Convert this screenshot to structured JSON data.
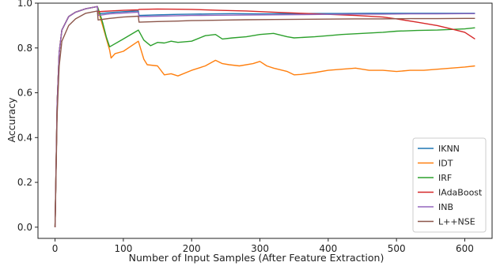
{
  "chart_data": {
    "type": "line",
    "title": "",
    "xlabel": "Number of Input Samples (After Feature Extraction)",
    "ylabel": "Accuracy",
    "xlim": [
      -25,
      640
    ],
    "ylim": [
      -0.05,
      1.0
    ],
    "xticks": [
      0,
      100,
      200,
      300,
      400,
      500,
      600
    ],
    "xtick_labels": [
      "0",
      "100",
      "200",
      "300",
      "400",
      "500",
      "600"
    ],
    "yticks": [
      0.0,
      0.2,
      0.4,
      0.6,
      0.8,
      1.0
    ],
    "ytick_labels": [
      "0.0",
      "0.2",
      "0.4",
      "0.6",
      "0.8",
      "1.0"
    ],
    "grid": false,
    "legend_position": "bottom-right",
    "series": [
      {
        "name": "IKNN",
        "color": "#1f77b4",
        "x": [
          0,
          3,
          6,
          10,
          20,
          30,
          45,
          62,
          63,
          80,
          100,
          122,
          123,
          150,
          180,
          200,
          230,
          260,
          300,
          340,
          380,
          420,
          460,
          500,
          540,
          580,
          615
        ],
        "y": [
          0.0,
          0.55,
          0.78,
          0.88,
          0.94,
          0.96,
          0.975,
          0.985,
          0.952,
          0.958,
          0.962,
          0.965,
          0.945,
          0.948,
          0.95,
          0.951,
          0.952,
          0.953,
          0.952,
          0.953,
          0.954,
          0.954,
          0.955,
          0.955,
          0.955,
          0.955,
          0.955
        ]
      },
      {
        "name": "IDT",
        "color": "#ff7f0e",
        "x": [
          0,
          3,
          6,
          10,
          20,
          30,
          45,
          62,
          65,
          80,
          82,
          88,
          100,
          122,
          130,
          135,
          150,
          160,
          170,
          180,
          200,
          220,
          235,
          245,
          255,
          270,
          290,
          300,
          310,
          320,
          340,
          350,
          360,
          380,
          400,
          420,
          440,
          460,
          480,
          500,
          520,
          540,
          560,
          580,
          600,
          615
        ],
        "y": [
          0.0,
          0.55,
          0.78,
          0.88,
          0.94,
          0.96,
          0.975,
          0.985,
          0.95,
          0.79,
          0.755,
          0.775,
          0.785,
          0.83,
          0.75,
          0.725,
          0.72,
          0.68,
          0.685,
          0.675,
          0.7,
          0.72,
          0.745,
          0.73,
          0.725,
          0.72,
          0.73,
          0.74,
          0.72,
          0.71,
          0.695,
          0.68,
          0.682,
          0.69,
          0.7,
          0.705,
          0.71,
          0.7,
          0.7,
          0.695,
          0.7,
          0.7,
          0.705,
          0.71,
          0.715,
          0.72
        ]
      },
      {
        "name": "IRF",
        "color": "#2ca02c",
        "x": [
          0,
          3,
          6,
          10,
          20,
          30,
          45,
          62,
          65,
          70,
          75,
          80,
          100,
          122,
          130,
          140,
          150,
          160,
          170,
          180,
          200,
          220,
          235,
          245,
          260,
          280,
          300,
          320,
          340,
          350,
          380,
          400,
          420,
          450,
          480,
          500,
          530,
          560,
          600,
          615
        ],
        "y": [
          0.0,
          0.55,
          0.78,
          0.88,
          0.94,
          0.96,
          0.975,
          0.985,
          0.96,
          0.91,
          0.85,
          0.805,
          0.84,
          0.88,
          0.835,
          0.81,
          0.825,
          0.822,
          0.83,
          0.825,
          0.83,
          0.855,
          0.86,
          0.84,
          0.845,
          0.85,
          0.86,
          0.865,
          0.85,
          0.845,
          0.85,
          0.855,
          0.86,
          0.865,
          0.87,
          0.875,
          0.878,
          0.88,
          0.885,
          0.89
        ]
      },
      {
        "name": "IAdaBoost",
        "color": "#d62728",
        "x": [
          0,
          3,
          6,
          10,
          20,
          30,
          45,
          62,
          63,
          80,
          100,
          122,
          123,
          150,
          180,
          200,
          240,
          280,
          320,
          360,
          400,
          440,
          480,
          500,
          530,
          560,
          580,
          600,
          615
        ],
        "y": [
          0.0,
          0.55,
          0.78,
          0.88,
          0.94,
          0.96,
          0.975,
          0.985,
          0.962,
          0.965,
          0.968,
          0.97,
          0.972,
          0.974,
          0.973,
          0.972,
          0.968,
          0.965,
          0.96,
          0.955,
          0.95,
          0.945,
          0.938,
          0.93,
          0.915,
          0.9,
          0.885,
          0.87,
          0.84
        ]
      },
      {
        "name": "INB",
        "color": "#9467bd",
        "x": [
          0,
          3,
          6,
          10,
          20,
          30,
          45,
          62,
          63,
          80,
          100,
          122,
          123,
          150,
          180,
          200,
          240,
          280,
          320,
          360,
          400,
          440,
          480,
          520,
          560,
          600,
          615
        ],
        "y": [
          0.0,
          0.55,
          0.78,
          0.88,
          0.94,
          0.96,
          0.975,
          0.985,
          0.945,
          0.952,
          0.956,
          0.96,
          0.94,
          0.942,
          0.944,
          0.945,
          0.946,
          0.947,
          0.948,
          0.949,
          0.95,
          0.951,
          0.951,
          0.952,
          0.952,
          0.953,
          0.953
        ]
      },
      {
        "name": "L++NSE",
        "color": "#8c564b",
        "x": [
          0,
          3,
          6,
          10,
          20,
          30,
          45,
          62,
          63,
          80,
          100,
          122,
          123,
          150,
          180,
          200,
          240,
          280,
          320,
          360,
          400,
          440,
          480,
          520,
          560,
          600,
          615
        ],
        "y": [
          0.0,
          0.5,
          0.72,
          0.83,
          0.9,
          0.93,
          0.955,
          0.965,
          0.925,
          0.932,
          0.938,
          0.942,
          0.915,
          0.918,
          0.92,
          0.922,
          0.924,
          0.926,
          0.927,
          0.928,
          0.929,
          0.93,
          0.93,
          0.931,
          0.931,
          0.932,
          0.932
        ]
      }
    ]
  }
}
